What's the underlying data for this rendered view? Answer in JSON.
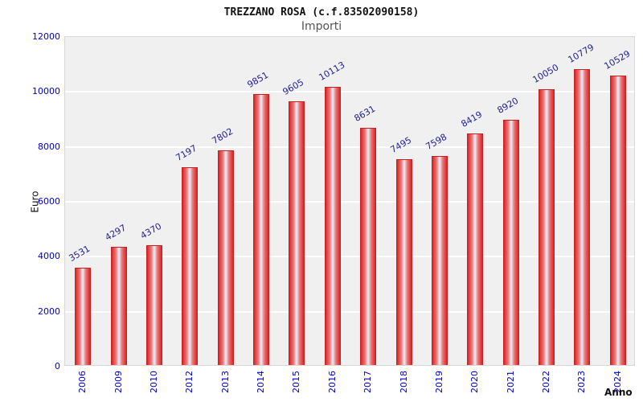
{
  "header": {
    "title": "TREZZANO ROSA (c.f.83502090158)",
    "subtitle": "Importi"
  },
  "chart_data": {
    "type": "bar",
    "title": "TREZZANO ROSA (c.f.83502090158)",
    "subtitle": "Importi",
    "categories": [
      "2006",
      "2009",
      "2010",
      "2012",
      "2013",
      "2014",
      "2015",
      "2016",
      "2017",
      "2018",
      "2019",
      "2020",
      "2021",
      "2022",
      "2023",
      "2024"
    ],
    "values": [
      3531,
      4297,
      4370,
      7197,
      7802,
      9851,
      9605,
      10113,
      8631,
      7495,
      7598,
      8419,
      8920,
      10050,
      10779,
      10529
    ],
    "xlabel": "Anno",
    "ylabel": "Euro",
    "ylim": [
      0,
      12000
    ],
    "yticks": [
      0,
      2000,
      4000,
      6000,
      8000,
      10000,
      12000
    ],
    "grid": true,
    "legend": "none",
    "colors": {
      "bar_fill": "#d92626",
      "bar_highlight": "#e8f0fb",
      "bar_edge": "#c81f1f",
      "axis_tick_label": "#0000cd",
      "value_label": "#1f1f8f",
      "plot_background": "#f0f0f0",
      "gridline": "#ffffff"
    }
  }
}
